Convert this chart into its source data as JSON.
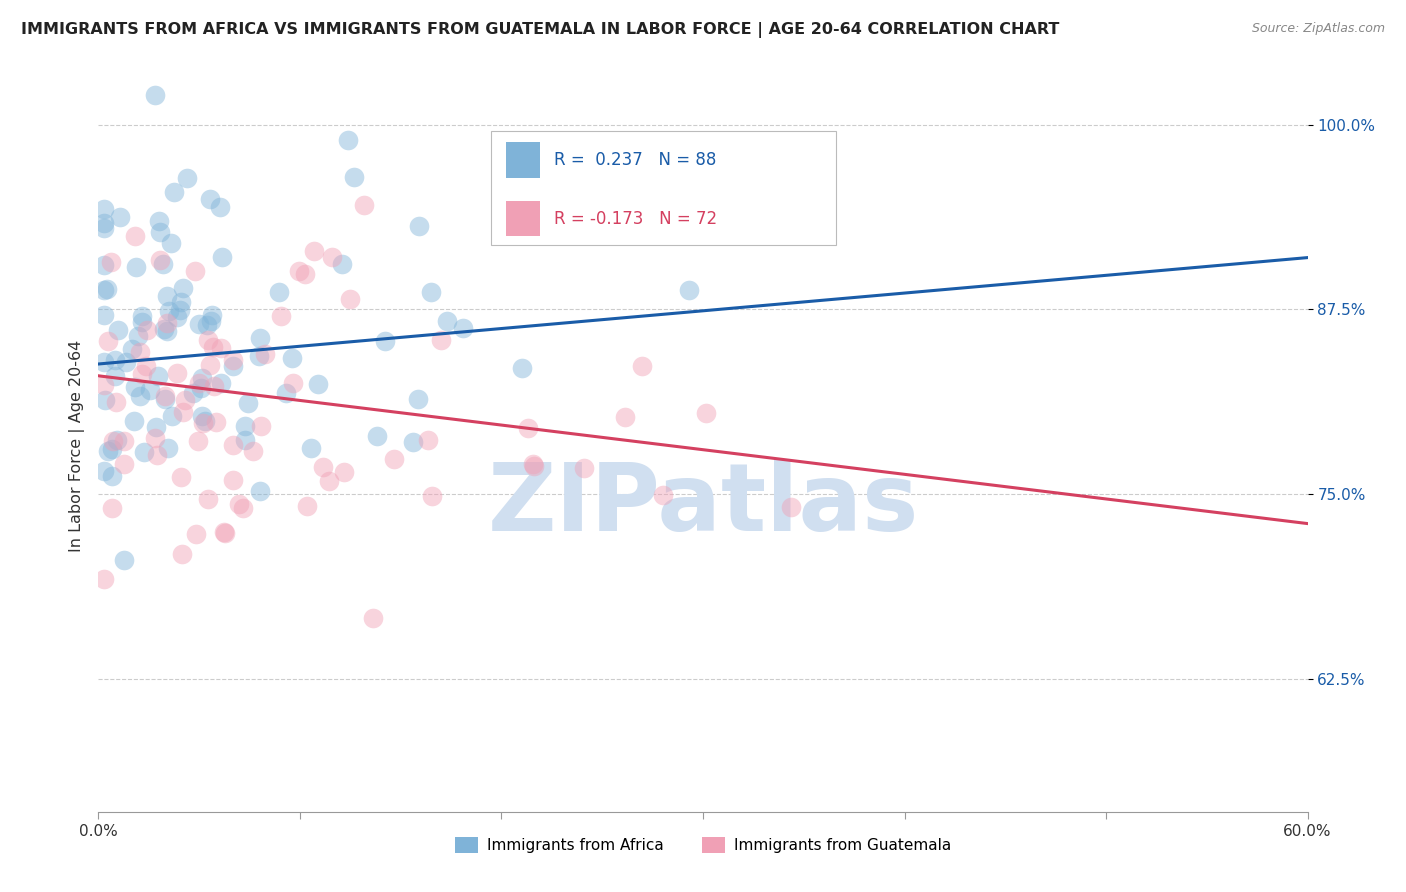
{
  "title": "IMMIGRANTS FROM AFRICA VS IMMIGRANTS FROM GUATEMALA IN LABOR FORCE | AGE 20-64 CORRELATION CHART",
  "source": "Source: ZipAtlas.com",
  "ylabel": "In Labor Force | Age 20-64",
  "xlim": [
    0.0,
    0.6
  ],
  "ylim": [
    0.535,
    1.03
  ],
  "yticks": [
    0.625,
    0.75,
    0.875,
    1.0
  ],
  "ytick_labels": [
    "62.5%",
    "75.0%",
    "87.5%",
    "100.0%"
  ],
  "series1_color": "#7fb3d8",
  "series2_color": "#f0a0b5",
  "trendline1_color": "#1a5ca8",
  "trendline2_color": "#d44060",
  "R1": 0.237,
  "N1": 88,
  "R2": -0.173,
  "N2": 72,
  "legend_label1": "Immigrants from Africa",
  "legend_label2": "Immigrants from Guatemala",
  "watermark": "ZIPatlas",
  "watermark_color": "#d0dff0",
  "trendline1_x0": 0.0,
  "trendline1_y0": 0.838,
  "trendline1_x1": 0.6,
  "trendline1_y1": 0.91,
  "trendline2_x0": 0.0,
  "trendline2_y0": 0.83,
  "trendline2_x1": 0.6,
  "trendline2_y1": 0.73
}
